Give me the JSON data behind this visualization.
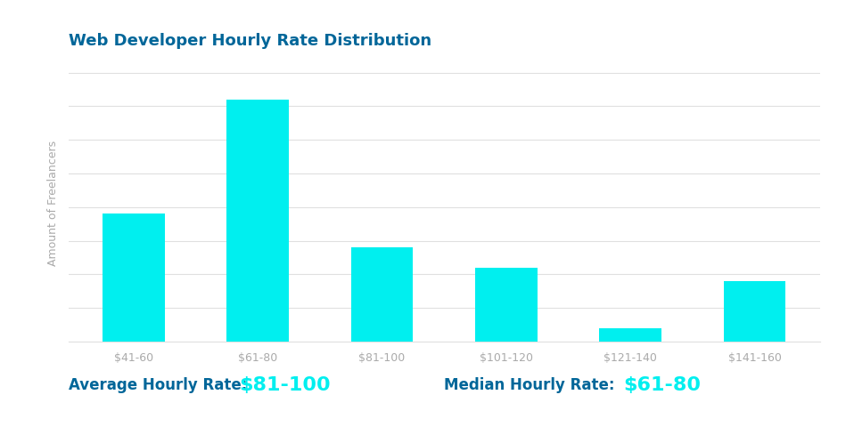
{
  "title": "Web Developer Hourly Rate Distribution",
  "categories": [
    "$41-60",
    "$61-80",
    "$81-100",
    "$101-120",
    "$121-140",
    "$141-160"
  ],
  "values": [
    38,
    72,
    28,
    22,
    4,
    18
  ],
  "bar_color": "#00EFEF",
  "ylabel": "Amount of Freelancers",
  "background_color": "#ffffff",
  "grid_color": "#e0e0e0",
  "title_color": "#006699",
  "title_fontsize": 13,
  "ylabel_color": "#aaaaaa",
  "ylabel_fontsize": 9,
  "xtick_color": "#aaaaaa",
  "xtick_fontsize": 9,
  "footer_label1": "Average Hourly Rate:",
  "footer_value1": "$81-100",
  "footer_label2": "Median Hourly Rate:",
  "footer_value2": "$61-80",
  "footer_label_color": "#006699",
  "footer_value_color": "#00EFEF",
  "footer_fontsize": 12,
  "footer_value_fontsize": 16
}
